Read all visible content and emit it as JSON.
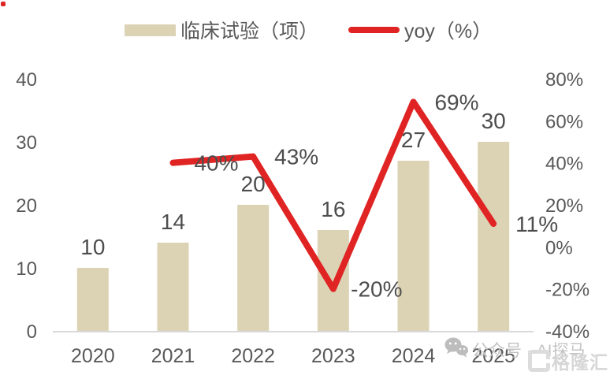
{
  "legend": {
    "bar_label": "临床试验（项）",
    "line_label": "yoy（%）"
  },
  "chart_data": {
    "type": "combo",
    "categories": [
      "2020",
      "2021",
      "2022",
      "2023",
      "2024",
      "2025"
    ],
    "series": [
      {
        "name": "临床试验（项）",
        "type": "bar",
        "axis": "left",
        "color": "#dcd2b4",
        "values": [
          10,
          14,
          20,
          16,
          27,
          30
        ],
        "data_labels": [
          "10",
          "14",
          "20",
          "16",
          "27",
          "30"
        ]
      },
      {
        "name": "yoy（%）",
        "type": "line",
        "axis": "right",
        "color": "#e02424",
        "values": [
          null,
          40,
          43,
          -20,
          69,
          11
        ],
        "data_labels": [
          null,
          "40%",
          "43%",
          "-20%",
          "69%",
          "11%"
        ]
      }
    ],
    "left_axis": {
      "ticks": [
        0,
        10,
        20,
        30,
        40
      ],
      "range": [
        0,
        40
      ]
    },
    "right_axis": {
      "ticks": [
        "80%",
        "60%",
        "40%",
        "20%",
        "0%",
        "-20%",
        "-40%"
      ],
      "tick_values": [
        80,
        60,
        40,
        20,
        0,
        -20,
        -40
      ],
      "range": [
        -40,
        80
      ]
    },
    "grid": false,
    "legend_position": "top"
  },
  "watermark": {
    "wechat_text": "公众号 · AI探马",
    "logo_text": "格隆汇"
  },
  "colors": {
    "bar": "#dcd2b4",
    "line": "#e02424",
    "axis_text": "#595959",
    "data_label": "#4d4d4d",
    "axis_line": "#d9d9d9",
    "watermark_icon": "#a8a8a8",
    "corner_mark": "#e02424"
  }
}
